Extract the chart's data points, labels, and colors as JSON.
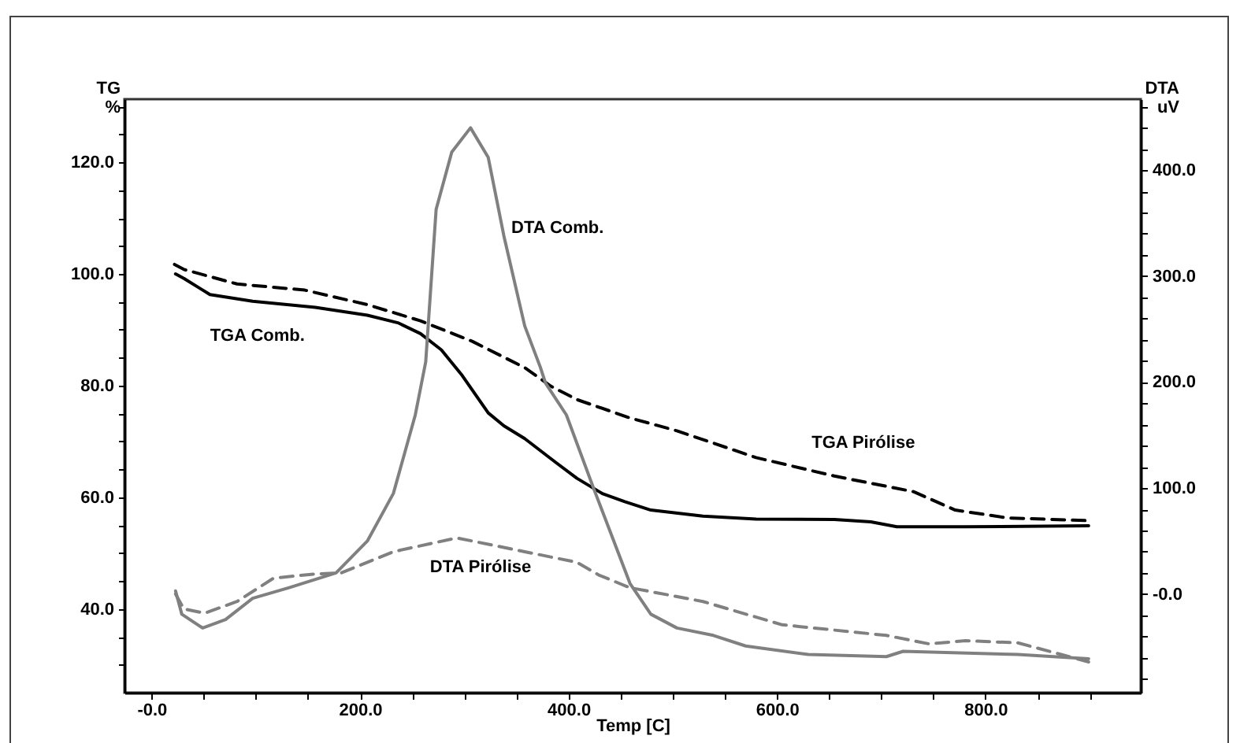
{
  "chart_data": {
    "type": "line",
    "xlabel": "Temp [C]",
    "ylabel": "TG\n%",
    "y2label": "DTA\nuV",
    "xlim": [
      -26,
      949
    ],
    "ylim": [
      25,
      131.3
    ],
    "y2lim": [
      -93,
      467
    ],
    "xticks": [
      {
        "value": 0,
        "label": "-0.0"
      },
      {
        "value": 50,
        "label": null
      },
      {
        "value": 100,
        "label": null
      },
      {
        "value": 150,
        "label": null
      },
      {
        "value": 200,
        "label": "200.0"
      },
      {
        "value": 250,
        "label": null
      },
      {
        "value": 300,
        "label": null
      },
      {
        "value": 350,
        "label": null
      },
      {
        "value": 400,
        "label": "400.0"
      },
      {
        "value": 450,
        "label": null
      },
      {
        "value": 500,
        "label": null
      },
      {
        "value": 550,
        "label": null
      },
      {
        "value": 600,
        "label": "600.0"
      },
      {
        "value": 650,
        "label": null
      },
      {
        "value": 700,
        "label": null
      },
      {
        "value": 750,
        "label": null
      },
      {
        "value": 800,
        "label": "800.0"
      },
      {
        "value": 850,
        "label": null
      },
      {
        "value": 900,
        "label": null
      }
    ],
    "yticks": [
      {
        "value": 30,
        "label": null
      },
      {
        "value": 35,
        "label": null
      },
      {
        "value": 40,
        "label": "40.0"
      },
      {
        "value": 45,
        "label": null
      },
      {
        "value": 50,
        "label": null
      },
      {
        "value": 55,
        "label": null
      },
      {
        "value": 60,
        "label": "60.0"
      },
      {
        "value": 65,
        "label": null
      },
      {
        "value": 70,
        "label": null
      },
      {
        "value": 75,
        "label": null
      },
      {
        "value": 80,
        "label": "80.0"
      },
      {
        "value": 85,
        "label": null
      },
      {
        "value": 90,
        "label": null
      },
      {
        "value": 95,
        "label": null
      },
      {
        "value": 100,
        "label": "100.0"
      },
      {
        "value": 105,
        "label": null
      },
      {
        "value": 110,
        "label": null
      },
      {
        "value": 115,
        "label": null
      },
      {
        "value": 120,
        "label": "120.0"
      },
      {
        "value": 125,
        "label": null
      },
      {
        "value": 130,
        "label": null
      }
    ],
    "y2ticks": [
      {
        "value": -80,
        "label": null
      },
      {
        "value": -60,
        "label": null
      },
      {
        "value": -40,
        "label": null
      },
      {
        "value": -20,
        "label": null
      },
      {
        "value": 0,
        "label": "-0.0"
      },
      {
        "value": 20,
        "label": null
      },
      {
        "value": 40,
        "label": null
      },
      {
        "value": 60,
        "label": null
      },
      {
        "value": 80,
        "label": null
      },
      {
        "value": 100,
        "label": "100.0"
      },
      {
        "value": 120,
        "label": null
      },
      {
        "value": 140,
        "label": null
      },
      {
        "value": 160,
        "label": null
      },
      {
        "value": 180,
        "label": null
      },
      {
        "value": 200,
        "label": "200.0"
      },
      {
        "value": 220,
        "label": null
      },
      {
        "value": 240,
        "label": null
      },
      {
        "value": 260,
        "label": null
      },
      {
        "value": 280,
        "label": null
      },
      {
        "value": 300,
        "label": "300.0"
      },
      {
        "value": 320,
        "label": null
      },
      {
        "value": 340,
        "label": null
      },
      {
        "value": 360,
        "label": null
      },
      {
        "value": 380,
        "label": null
      },
      {
        "value": 400,
        "label": "400.0"
      },
      {
        "value": 420,
        "label": null
      },
      {
        "value": 440,
        "label": null
      },
      {
        "value": 460,
        "label": null
      }
    ],
    "grid": false,
    "legend": false,
    "series": [
      {
        "name": "TGA Comb.",
        "color": "#000000",
        "line_style": "solid",
        "x": [
          23,
          31,
          56,
          97,
          157,
          207,
          237,
          258,
          278,
          298,
          323,
          338,
          358,
          388,
          408,
          433,
          454,
          479,
          529,
          580,
          655,
          690,
          715,
          781,
          899
        ],
        "values": [
          100,
          99.2,
          96.3,
          95.1,
          94,
          92.6,
          91.2,
          89.3,
          86.4,
          81.8,
          75.1,
          72.8,
          70.5,
          66.2,
          63.4,
          60.6,
          59.2,
          57.7,
          56.6,
          56.1,
          56,
          55.6,
          54.7,
          54.7,
          54.9
        ]
      },
      {
        "name": "TGA Pirólise",
        "color": "#000000",
        "line_style": "dashed",
        "x": [
          22,
          31,
          82,
          147,
          207,
          258,
          308,
          358,
          383,
          408,
          459,
          504,
          580,
          655,
          731,
          771,
          821,
          899
        ],
        "values": [
          101.7,
          100.8,
          98.2,
          97.1,
          94.5,
          91.6,
          87.9,
          83.2,
          79.9,
          77.5,
          74.2,
          71.9,
          67.1,
          63.8,
          61,
          57.7,
          56.3,
          55.8
        ]
      },
      {
        "name": "DTA Comb.",
        "color": "#808080",
        "line_style": "solid",
        "axis": "y2",
        "x": [
          23,
          29,
          49,
          71,
          97,
          132,
          177,
          207,
          232,
          253,
          263,
          273,
          288,
          306,
          323,
          338,
          358,
          373,
          378,
          398,
          424,
          459,
          479,
          504,
          539,
          570,
          630,
          705,
          721,
          831,
          899
        ],
        "values": [
          3,
          -19,
          -32,
          -24,
          -4,
          6,
          20,
          50,
          95,
          169,
          219,
          363,
          417,
          440,
          412,
          338,
          253,
          214,
          199,
          169,
          100,
          10,
          -19,
          -32,
          -39,
          -49,
          -57,
          -59,
          -54,
          -57,
          -61
        ]
      },
      {
        "name": "DTA Pirólise",
        "color": "#808080",
        "line_style": "dashed",
        "axis": "y2",
        "x": [
          23,
          31,
          51,
          82,
          117,
          157,
          182,
          232,
          293,
          358,
          408,
          429,
          459,
          529,
          605,
          705,
          746,
          781,
          831,
          899
        ],
        "values": [
          0,
          -14,
          -18,
          -7,
          15,
          19,
          20,
          40,
          53,
          40,
          30,
          18,
          6,
          -7,
          -29,
          -39,
          -47,
          -44,
          -46,
          -64
        ]
      }
    ]
  }
}
